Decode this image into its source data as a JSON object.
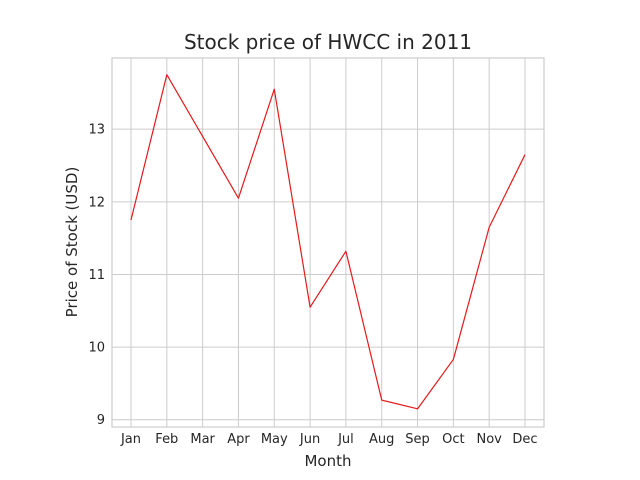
{
  "chart_data": {
    "type": "line",
    "title": "Stock price of HWCC in 2011",
    "xlabel": "Month",
    "ylabel": "Price of Stock (USD)",
    "categories": [
      "Jan",
      "Feb",
      "Mar",
      "Apr",
      "May",
      "Jun",
      "Jul",
      "Aug",
      "Sep",
      "Oct",
      "Nov",
      "Dec"
    ],
    "series": [
      {
        "color": "#e41a1c",
        "values": [
          11.75,
          13.75,
          12.9,
          12.05,
          13.55,
          10.55,
          11.32,
          9.27,
          9.15,
          9.83,
          11.65,
          12.65
        ]
      }
    ],
    "yticks": [
      9,
      10,
      11,
      12,
      13
    ],
    "ylim": [
      8.9,
      13.98
    ],
    "grid": true,
    "colors": {
      "grid": "#cccccc",
      "text": "#262626",
      "background": "#ffffff"
    }
  }
}
